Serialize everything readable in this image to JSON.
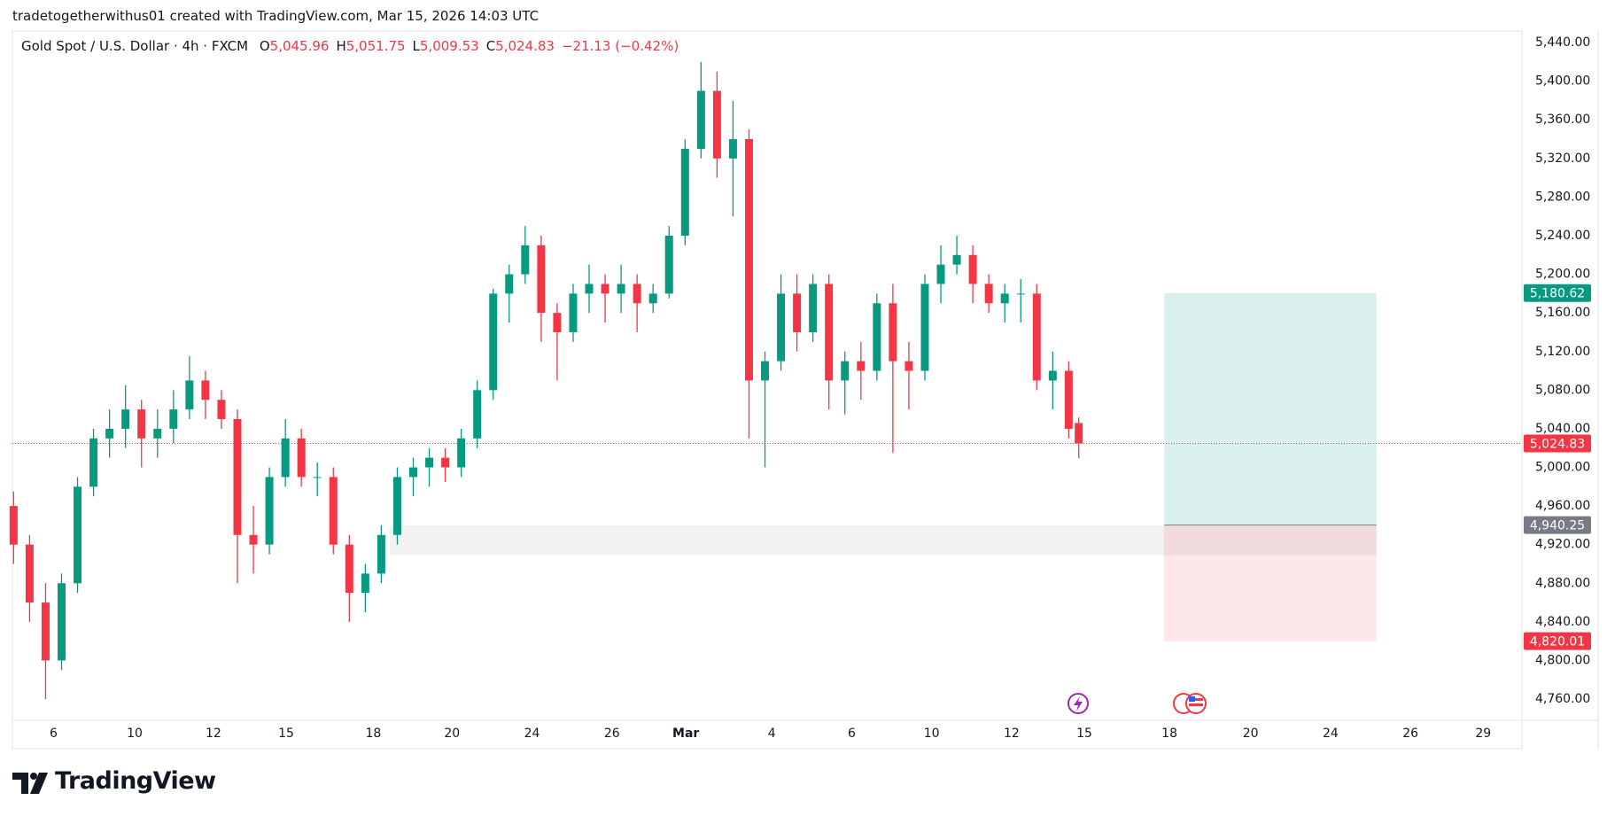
{
  "header": "tradetogetherwithus01 created with TradingView.com, Mar 15, 2026 14:03 UTC",
  "brand": "TradingView",
  "chart_data": {
    "type": "candlestick",
    "title": "Gold Spot / U.S. Dollar · 4h · FXCM",
    "ohlc_legend": [
      {
        "label": "O",
        "value": "5,045.96"
      },
      {
        "label": "H",
        "value": "5,051.75"
      },
      {
        "label": "L",
        "value": "5,009.53"
      },
      {
        "label": "C",
        "value": "5,024.83"
      }
    ],
    "change": "−21.13 (−0.42%)",
    "up_color": "#089981",
    "down_color": "#f23645",
    "grid": false,
    "x": [
      -1,
      -0.6,
      -0.2,
      0.2,
      0.6,
      1,
      1.4,
      1.8,
      2.2,
      2.6,
      3,
      3.4,
      3.8,
      4.2,
      4.6,
      5,
      5.4,
      5.8,
      6.2,
      6.6,
      7,
      7.4,
      7.8,
      8.2,
      8.6,
      9,
      9.4,
      9.8,
      10.2,
      10.6,
      11,
      11.4,
      11.8,
      12.2,
      12.6,
      13,
      13.4,
      13.8,
      14.2,
      14.6,
      15,
      15.4,
      15.8,
      16.2,
      16.6,
      17,
      17.4,
      17.8,
      18.2,
      18.6,
      19,
      19.4,
      19.8,
      20.2,
      20.6,
      21,
      21.4,
      21.8,
      22.2,
      22.6,
      23,
      23.4,
      23.8,
      24.2,
      24.6,
      25,
      25.4,
      25.65
    ],
    "open": [
      4960,
      4920,
      4860,
      4800,
      4880,
      4980,
      5030,
      5040,
      5060,
      5030,
      5040,
      5060,
      5090,
      5070,
      5050,
      4930,
      4920,
      4990,
      5030,
      4990,
      4990,
      4920,
      4870,
      4890,
      4930,
      4990,
      5000,
      5010,
      5000,
      5030,
      5080,
      5180,
      5200,
      5230,
      5160,
      5140,
      5180,
      5190,
      5180,
      5190,
      5170,
      5180,
      5240,
      5330,
      5390,
      5320,
      5340,
      5090,
      5110,
      5180,
      5140,
      5190,
      5090,
      5110,
      5100,
      5170,
      5110,
      5100,
      5190,
      5210,
      5220,
      5190,
      5170,
      5180,
      5180,
      5090,
      5100,
      5045.96
    ],
    "high": [
      4975,
      4930,
      4880,
      4890,
      4990,
      5040,
      5060,
      5085,
      5070,
      5060,
      5080,
      5115,
      5100,
      5080,
      5060,
      4960,
      5000,
      5050,
      5040,
      5005,
      5000,
      4930,
      4900,
      4940,
      5000,
      5010,
      5020,
      5020,
      5040,
      5090,
      5185,
      5210,
      5250,
      5240,
      5170,
      5190,
      5210,
      5200,
      5210,
      5200,
      5190,
      5250,
      5340,
      5420,
      5410,
      5380,
      5350,
      5120,
      5200,
      5200,
      5200,
      5200,
      5120,
      5130,
      5180,
      5190,
      5130,
      5200,
      5230,
      5240,
      5230,
      5200,
      5190,
      5195,
      5190,
      5120,
      5110,
      5051.75
    ],
    "low": [
      4900,
      4840,
      4760,
      4790,
      4870,
      4970,
      5010,
      5020,
      5000,
      5010,
      5025,
      5050,
      5050,
      5040,
      4880,
      4890,
      4910,
      4980,
      4980,
      4970,
      4910,
      4840,
      4850,
      4880,
      4920,
      4970,
      4980,
      4985,
      4990,
      5020,
      5070,
      5150,
      5190,
      5130,
      5090,
      5130,
      5160,
      5150,
      5160,
      5140,
      5160,
      5175,
      5230,
      5320,
      5300,
      5260,
      5030,
      5000,
      5100,
      5120,
      5130,
      5060,
      5055,
      5070,
      5090,
      5015,
      5060,
      5090,
      5170,
      5200,
      5170,
      5160,
      5150,
      5150,
      5080,
      5060,
      5030,
      5009.53
    ],
    "close": [
      4920,
      4860,
      4800,
      4880,
      4980,
      5030,
      5040,
      5060,
      5030,
      5040,
      5060,
      5090,
      5070,
      5050,
      4930,
      4920,
      4990,
      5030,
      4990,
      4990,
      4920,
      4870,
      4890,
      4930,
      4990,
      5000,
      5010,
      5000,
      5030,
      5080,
      5180,
      5200,
      5230,
      5160,
      5140,
      5180,
      5190,
      5180,
      5190,
      5170,
      5180,
      5240,
      5330,
      5390,
      5320,
      5340,
      5090,
      5110,
      5180,
      5140,
      5190,
      5090,
      5110,
      5100,
      5170,
      5110,
      5100,
      5190,
      5210,
      5220,
      5190,
      5170,
      5180,
      5180,
      5090,
      5100,
      5040,
      5024.83
    ],
    "xlim": [
      -1.03,
      36.74
    ],
    "xticks": [
      {
        "value": 0,
        "label": "6"
      },
      {
        "value": 2.03,
        "label": "10"
      },
      {
        "value": 4,
        "label": "12"
      },
      {
        "value": 5.82,
        "label": "15"
      },
      {
        "value": 8,
        "label": "18"
      },
      {
        "value": 9.97,
        "label": "20"
      },
      {
        "value": 11.97,
        "label": "24"
      },
      {
        "value": 13.97,
        "label": "26"
      },
      {
        "value": 15.82,
        "label": "Mar"
      },
      {
        "value": 17.97,
        "label": "4"
      },
      {
        "value": 19.97,
        "label": "6"
      },
      {
        "value": 21.97,
        "label": "10"
      },
      {
        "value": 23.97,
        "label": "12"
      },
      {
        "value": 25.79,
        "label": "15"
      },
      {
        "value": 27.92,
        "label": "18"
      },
      {
        "value": 29.95,
        "label": "20"
      },
      {
        "value": 31.95,
        "label": "24"
      },
      {
        "value": 33.95,
        "label": "26"
      },
      {
        "value": 35.77,
        "label": "29"
      }
    ],
    "ylim": [
      4738,
      5452
    ],
    "yticks": [
      {
        "value": 5440,
        "label": "5,440.00"
      },
      {
        "value": 5400,
        "label": "5,400.00"
      },
      {
        "value": 5360,
        "label": "5,360.00"
      },
      {
        "value": 5320,
        "label": "5,320.00"
      },
      {
        "value": 5280,
        "label": "5,280.00"
      },
      {
        "value": 5240,
        "label": "5,240.00"
      },
      {
        "value": 5200,
        "label": "5,200.00"
      },
      {
        "value": 5160,
        "label": "5,160.00"
      },
      {
        "value": 5120,
        "label": "5,120.00"
      },
      {
        "value": 5080,
        "label": "5,080.00"
      },
      {
        "value": 5040,
        "label": "5,040.00"
      },
      {
        "value": 5000,
        "label": "5,000.00"
      },
      {
        "value": 4960,
        "label": "4,960.00"
      },
      {
        "value": 4920,
        "label": "4,920.00"
      },
      {
        "value": 4880,
        "label": "4,880.00"
      },
      {
        "value": 4840,
        "label": "4,840.00"
      },
      {
        "value": 4800,
        "label": "4,800.00"
      },
      {
        "value": 4760,
        "label": "4,760.00"
      }
    ],
    "current_price": {
      "value": 5024.83,
      "label": "5,024.83",
      "color": "#f23645"
    },
    "zone": {
      "x": [
        8.41,
        33.1
      ],
      "y": [
        4909,
        4940
      ],
      "color": "#f0f0f0"
    },
    "position": {
      "x": [
        27.79,
        33.1
      ],
      "target": {
        "value": 5180.62,
        "label": "5,180.62",
        "color": "#089981"
      },
      "entry": {
        "value": 4940.25,
        "label": "4,940.25",
        "color": "#787b86"
      },
      "stop": {
        "value": 4820.01,
        "label": "4,820.01",
        "color": "#f23645"
      }
    }
  }
}
